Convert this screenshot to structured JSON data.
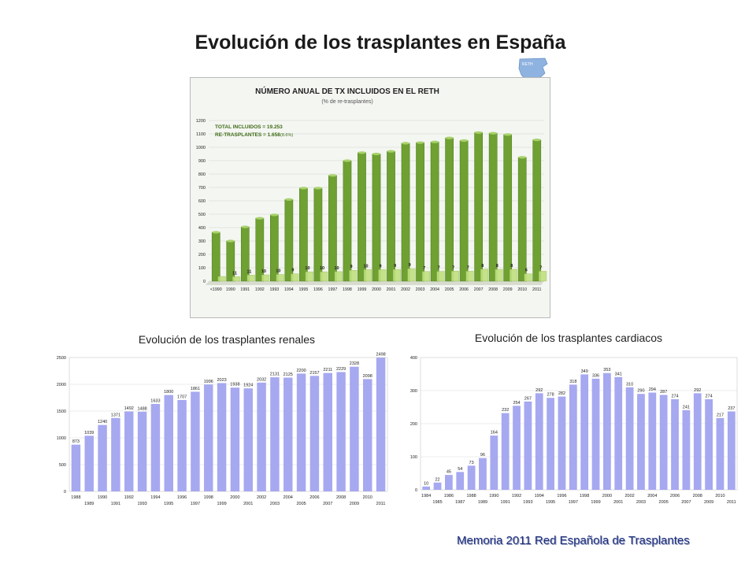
{
  "page_title": "Evolución de los trasplantes en España",
  "footer": "Memoria 2011 Red Española de Trasplantes",
  "map_label": "RETH",
  "colors": {
    "green_bar": "#6fa032",
    "purple_bar": "#a6a8f0",
    "footer_text": "#1f2f7a"
  },
  "chart_data": [
    {
      "type": "bar",
      "title": "NÚMERO ANUAL DE TX INCLUIDOS EN EL RETH",
      "subtitle": "(% de re-trasplantes)",
      "annotation_total": "TOTAL INCLUIDOS = 19.253",
      "annotation_re": "RE-TRASPLANTES  =  1.658",
      "annotation_re_pct": "(8.6%)",
      "categories": [
        "<1990",
        "1990",
        "1991",
        "1992",
        "1993",
        "1994",
        "1995",
        "1996",
        "1997",
        "1998",
        "1999",
        "2000",
        "2001",
        "2002",
        "2003",
        "2004",
        "2005",
        "2006",
        "2007",
        "2008",
        "2009",
        "2010",
        "2011"
      ],
      "series": [
        {
          "values": [
            365,
            300,
            405,
            470,
            495,
            610,
            695,
            695,
            790,
            900,
            960,
            950,
            970,
            1030,
            1035,
            1040,
            1070,
            1050,
            1110,
            1105,
            1095,
            925,
            1055
          ]
        },
        {
          "values": [
            35,
            33,
            45,
            47,
            50,
            55,
            70,
            70,
            71,
            81,
            86,
            86,
            87,
            93,
            72,
            73,
            75,
            74,
            89,
            88,
            88,
            55,
            74
          ]
        }
      ],
      "point_labels": [
        "",
        "11",
        "11",
        "10",
        "10",
        "9",
        "10",
        "10",
        "10",
        "9",
        "10",
        "9",
        "9",
        "9",
        "7",
        "7",
        "7",
        "7",
        "8",
        "8",
        "8",
        "6",
        "7"
      ],
      "ylim": [
        0,
        1200
      ],
      "yticks": [
        0,
        100,
        200,
        300,
        400,
        500,
        600,
        700,
        800,
        900,
        1000,
        1100,
        1200
      ],
      "grid": true
    },
    {
      "type": "bar",
      "title": "Evolución de los trasplantes renales",
      "categories": [
        "1988",
        "1989",
        "1990",
        "1991",
        "1992",
        "1993",
        "1994",
        "1995",
        "1996",
        "1997",
        "1998",
        "1999",
        "2000",
        "2001",
        "2002",
        "2003",
        "2004",
        "2005",
        "2006",
        "2007",
        "2008",
        "2009",
        "2010",
        "2011"
      ],
      "values": [
        873,
        1039,
        1240,
        1371,
        1492,
        1488,
        1633,
        1800,
        1707,
        1861,
        1996,
        2023,
        1938,
        1924,
        2032,
        2131,
        2125,
        2200,
        2157,
        2211,
        2229,
        2328,
        2098,
        2498
      ],
      "ylim": [
        0,
        2500
      ],
      "yticks": [
        0,
        500,
        1000,
        1500,
        2000,
        2500
      ],
      "grid": true
    },
    {
      "type": "bar",
      "title": "Evolución de los trasplantes cardiacos",
      "categories": [
        "1984",
        "1985",
        "1986",
        "1987",
        "1988",
        "1989",
        "1990",
        "1991",
        "1992",
        "1993",
        "1994",
        "1995",
        "1996",
        "1997",
        "1998",
        "1999",
        "2000",
        "2001",
        "2002",
        "2003",
        "2004",
        "2005",
        "2006",
        "2007",
        "2008",
        "2009",
        "2010",
        "2011"
      ],
      "values": [
        10,
        22,
        45,
        54,
        73,
        96,
        164,
        232,
        254,
        267,
        292,
        278,
        282,
        318,
        349,
        336,
        353,
        341,
        310,
        290,
        294,
        287,
        274,
        241,
        292,
        274,
        217,
        237
      ],
      "ylim": [
        0,
        400
      ],
      "yticks": [
        0,
        100,
        200,
        300,
        400
      ],
      "grid": true
    }
  ]
}
